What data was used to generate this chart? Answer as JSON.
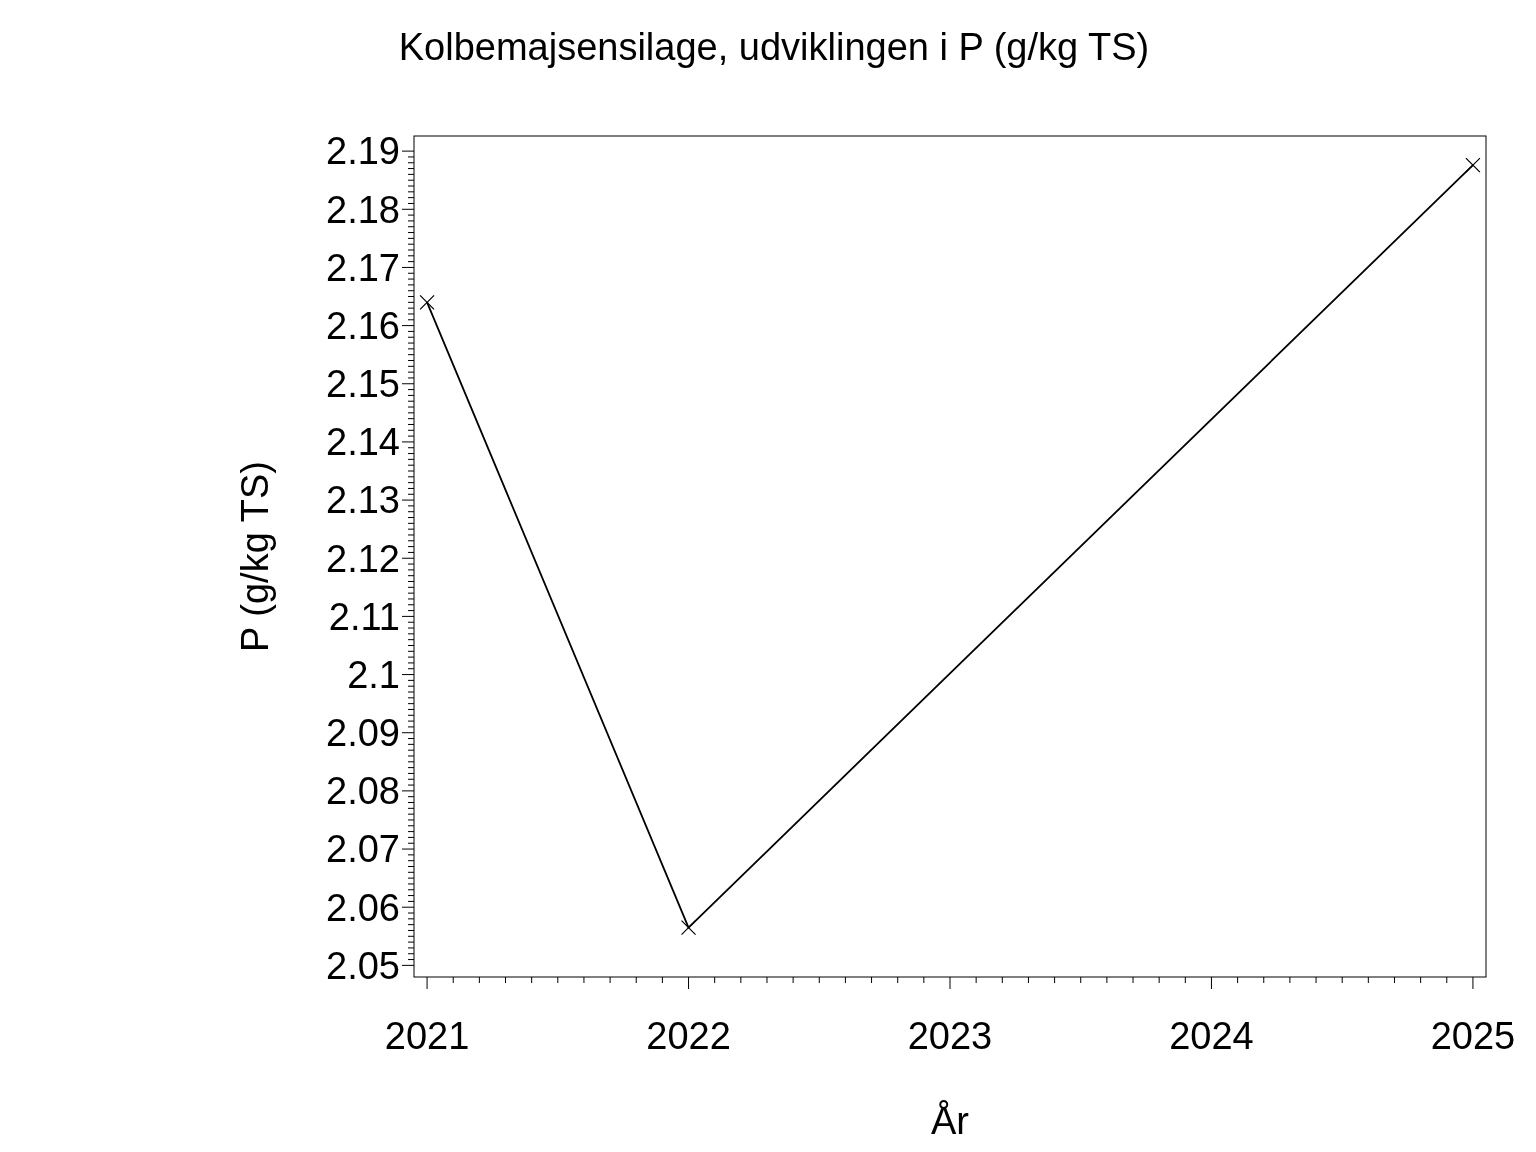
{
  "chart_data": {
    "type": "line",
    "title": "Kolbemajsensilage,  udviklingen  i  P  (g/kg  TS)",
    "xlabel": "År",
    "ylabel": "P  (g/kg  TS)",
    "x": [
      2021,
      2022,
      2025
    ],
    "series": [
      {
        "color": "#000000",
        "values": [
          2.164,
          2.0565,
          2.1876
        ]
      }
    ],
    "xlim": [
      2020.95,
      2025.05
    ],
    "xticks": [
      2021,
      2022,
      2023,
      2024,
      2025
    ],
    "ylim": [
      2.048,
      2.1926
    ],
    "yticks": [
      2.05,
      2.06,
      2.07,
      2.08,
      2.09,
      2.1,
      2.11,
      2.12,
      2.13,
      2.14,
      2.15,
      2.16,
      2.17,
      2.18,
      2.19
    ],
    "marker": "cross",
    "line_style": "solid",
    "grid": false
  }
}
